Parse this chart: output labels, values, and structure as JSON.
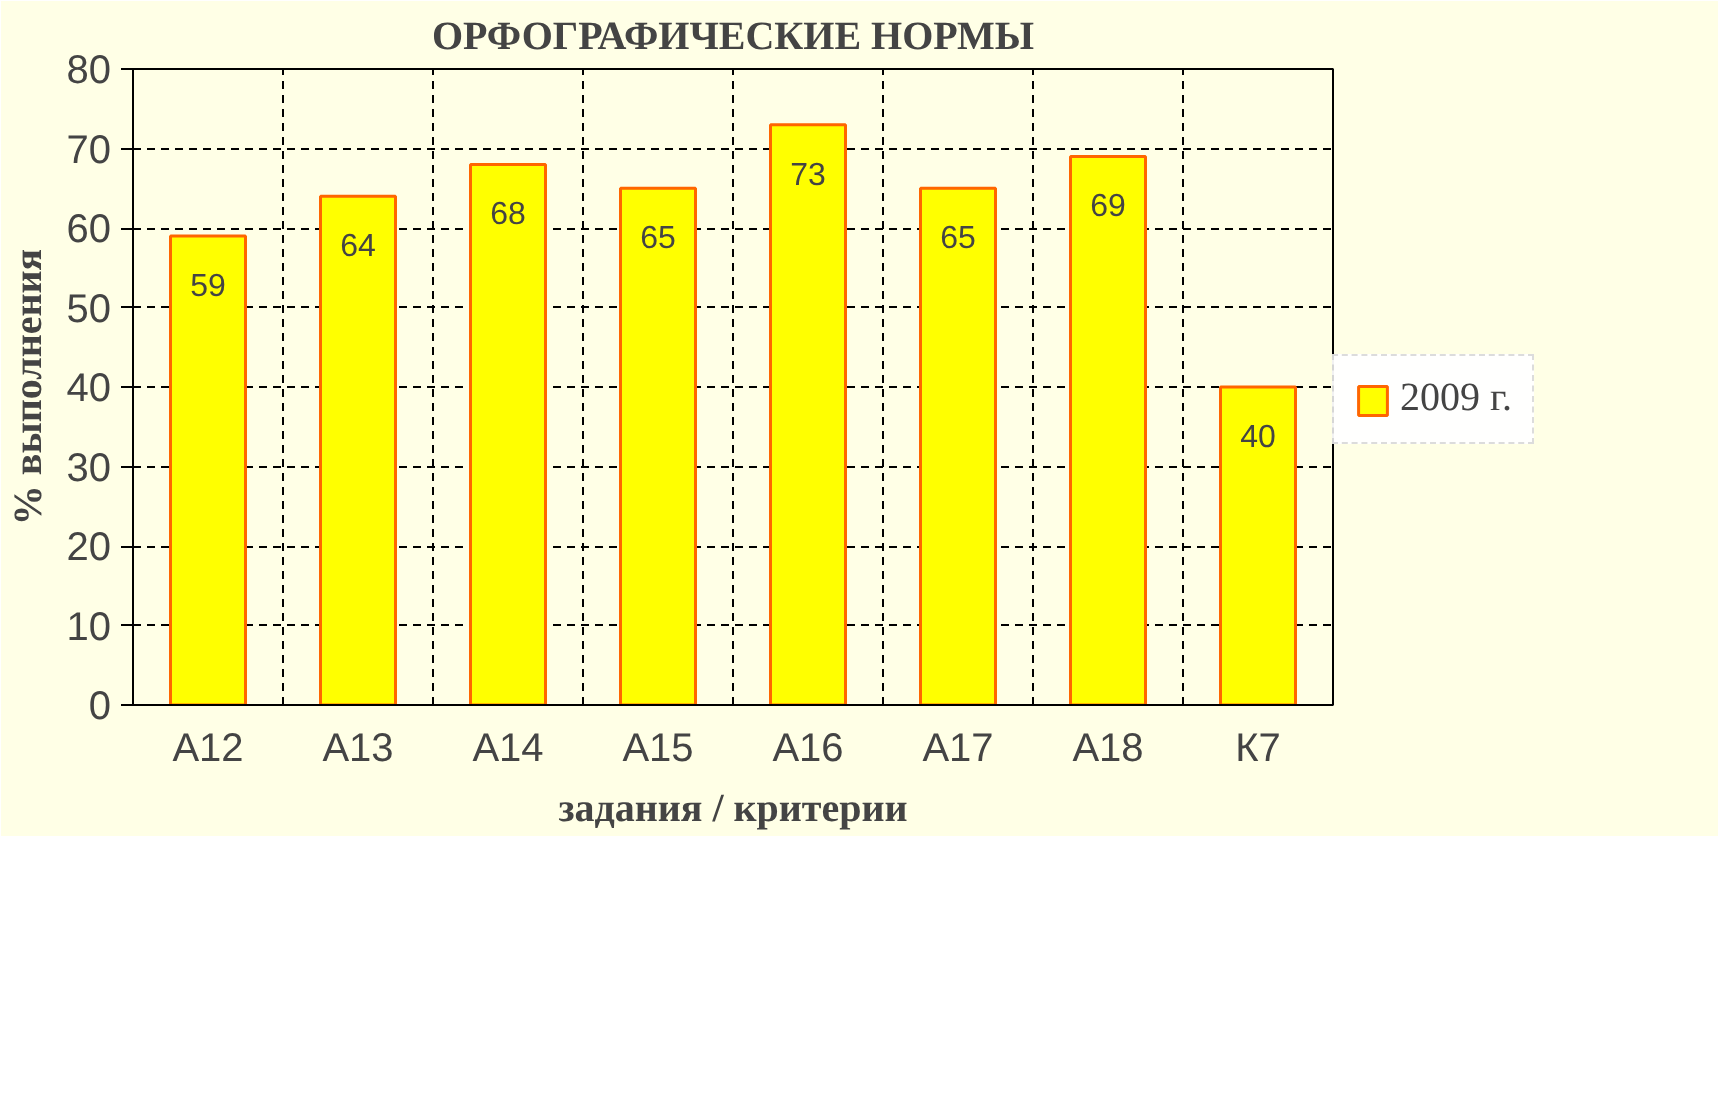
{
  "chart_data": {
    "type": "bar",
    "title": "ОРФОГРАФИЧЕСКИЕ НОРМЫ",
    "xlabel": "задания / критерии",
    "ylabel": "% выполнения",
    "categories": [
      "А12",
      "А13",
      "А14",
      "А15",
      "А16",
      "А17",
      "А18",
      "К7"
    ],
    "series": [
      {
        "name": "2009 г.",
        "color": "#ffff00",
        "values": [
          59,
          64,
          68,
          65,
          73,
          65,
          69,
          40
        ]
      }
    ],
    "ylim": [
      0,
      80
    ],
    "yticks": [
      0,
      10,
      20,
      30,
      40,
      50,
      60,
      70,
      80
    ],
    "grid": true,
    "legend": "right",
    "data_labels": true
  }
}
